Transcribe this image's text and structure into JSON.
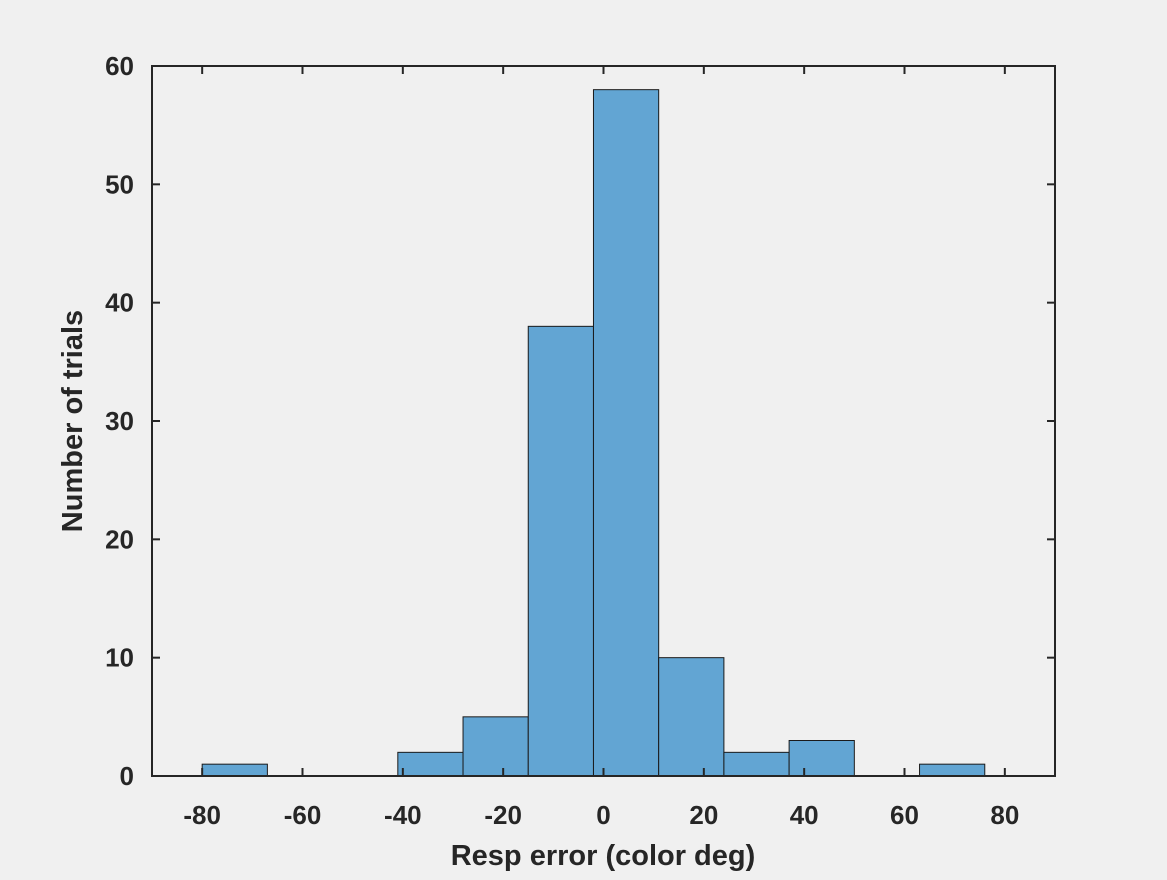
{
  "chart_data": {
    "type": "bar",
    "subtype": "histogram",
    "title": "",
    "xlabel": "Resp error (color deg)",
    "ylabel": "Number of trials",
    "xlim": [
      -90,
      90
    ],
    "ylim": [
      0,
      60
    ],
    "x_ticks": [
      -80,
      -60,
      -40,
      -20,
      0,
      20,
      40,
      60,
      80
    ],
    "y_ticks": [
      0,
      10,
      20,
      30,
      40,
      50,
      60
    ],
    "bin_edges": [
      -80,
      -67,
      -54,
      -41,
      -28,
      -15,
      -2,
      11,
      24,
      37,
      50,
      63,
      76
    ],
    "values": [
      1,
      0,
      0,
      2,
      5,
      38,
      58,
      10,
      2,
      3,
      0,
      1
    ],
    "grid": false,
    "legend": "none",
    "colors": {
      "bar_fill": "#62a5d3",
      "bar_edge": "#1a1a1a",
      "axis": "#262626",
      "background": "#f0f0f0"
    }
  }
}
